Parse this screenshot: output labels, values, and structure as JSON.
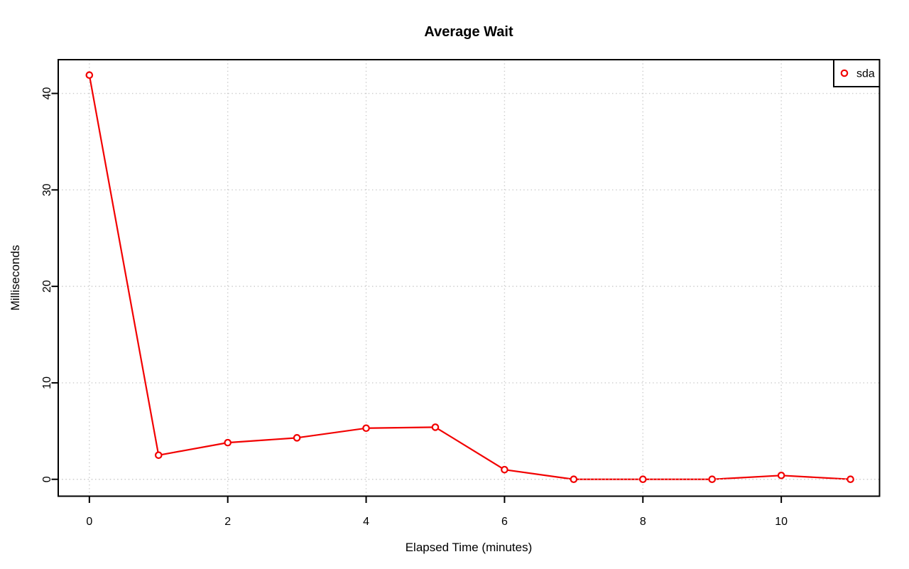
{
  "chart_data": {
    "type": "line",
    "title": "Average Wait",
    "xlabel": "Elapsed Time (minutes)",
    "ylabel": "Milliseconds",
    "x": [
      0,
      1,
      2,
      3,
      4,
      5,
      6,
      7,
      8,
      9,
      10,
      11
    ],
    "series": [
      {
        "name": "sda",
        "color": "#f20000",
        "marker": "open-circle",
        "values": [
          41.9,
          2.5,
          3.8,
          4.3,
          5.3,
          5.4,
          1.0,
          0.0,
          0.0,
          0.0,
          0.4,
          0.0
        ]
      }
    ],
    "xticks": [
      0,
      2,
      4,
      6,
      8,
      10
    ],
    "yticks": [
      0,
      10,
      20,
      30,
      40
    ],
    "xlim": [
      -0.45,
      11.42
    ],
    "ylim": [
      -1.75,
      43.5
    ],
    "grid": true,
    "grid_style": "dotted",
    "grid_color": "#cbcbcb",
    "axis_color": "#000000",
    "background": "#ffffff",
    "legend": {
      "position": "topright",
      "entries": [
        "sda"
      ]
    }
  }
}
